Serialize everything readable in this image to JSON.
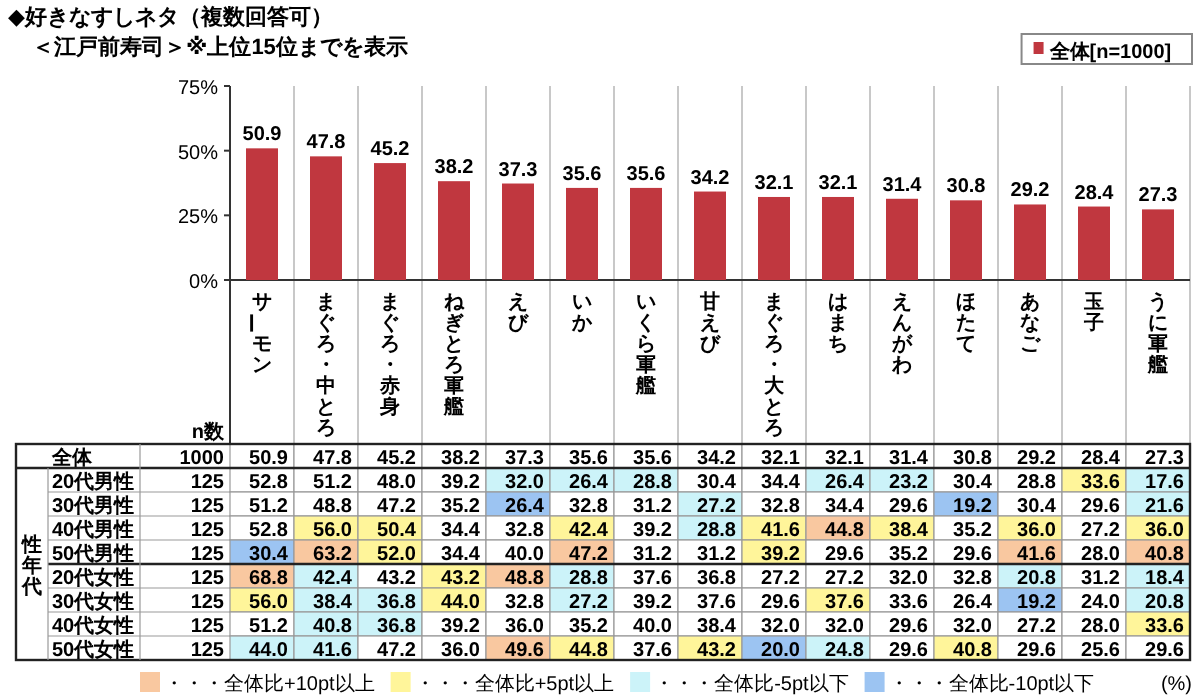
{
  "chart_data": [
    {
      "type": "bar",
      "title": "◆好きなすしネタ（複数回答可）",
      "subtitle": "＜江戸前寿司＞※上位15位までを表示",
      "categories": [
        "サーモン",
        "まぐろ・中とろ",
        "まぐろ・赤身",
        "ねぎとろ軍艦",
        "えび",
        "いか",
        "いくら軍艦",
        "甘えび",
        "まぐろ・大とろ",
        "はまち",
        "えんがわ",
        "ほたて",
        "あなご",
        "玉子",
        "うに軍艦"
      ],
      "series": [
        {
          "name": "全体[n=1000]",
          "color": "#c0373f",
          "values": [
            50.9,
            47.8,
            45.2,
            38.2,
            37.3,
            35.6,
            35.6,
            34.2,
            32.1,
            32.1,
            31.4,
            30.8,
            29.2,
            28.4,
            27.3
          ],
          "value_labels": [
            "50.9",
            "47.8",
            "45.2",
            "38.2",
            "37.3",
            "35.6",
            "35.6",
            "34.2",
            "32.1",
            "32.1",
            "31.4",
            "30.8",
            "29.2",
            "28.4",
            "27.3"
          ]
        }
      ],
      "ylim": [
        0,
        75
      ],
      "yticks": [
        {
          "value": 0,
          "label": "0%"
        },
        {
          "value": 25,
          "label": "25%"
        },
        {
          "value": 50,
          "label": "50%"
        },
        {
          "value": 75,
          "label": "75%"
        }
      ],
      "legend": "top right"
    },
    {
      "type": "heatmap",
      "ylabel": "性年代",
      "y2label": "n数",
      "tick_labels": "y",
      "categories": [
        "サーモン",
        "まぐろ・中とろ",
        "まぐろ・赤身",
        "ねぎとろ軍艦",
        "えび",
        "いか",
        "いくら軍艦",
        "甘えび",
        "まぐろ・大とろ",
        "はまち",
        "えんがわ",
        "ほたて",
        "あなご",
        "玉子",
        "うに軍艦"
      ],
      "y_categories": [
        "全体",
        "20代男性",
        "30代男性",
        "40代男性",
        "50代男性",
        "20代女性",
        "30代女性",
        "40代女性",
        "50代女性"
      ],
      "y2_categories": [
        "1000",
        "125",
        "125",
        "125",
        "125",
        "125",
        "125",
        "125",
        "125"
      ],
      "cells": [
        [
          50.9,
          47.8,
          45.2,
          38.2,
          37.3,
          35.6,
          35.6,
          34.2,
          32.1,
          32.1,
          31.4,
          30.8,
          29.2,
          28.4,
          27.3
        ],
        [
          52.8,
          51.2,
          48.0,
          39.2,
          32.0,
          26.4,
          28.8,
          30.4,
          34.4,
          26.4,
          23.2,
          30.4,
          28.8,
          33.6,
          17.6
        ],
        [
          51.2,
          48.8,
          47.2,
          35.2,
          26.4,
          32.8,
          31.2,
          27.2,
          32.8,
          34.4,
          29.6,
          19.2,
          30.4,
          29.6,
          21.6
        ],
        [
          52.8,
          56.0,
          50.4,
          34.4,
          32.8,
          42.4,
          39.2,
          28.8,
          41.6,
          44.8,
          38.4,
          35.2,
          36.0,
          27.2,
          36.0
        ],
        [
          30.4,
          63.2,
          52.0,
          34.4,
          40.0,
          47.2,
          31.2,
          31.2,
          39.2,
          29.6,
          35.2,
          29.6,
          41.6,
          28.0,
          40.8
        ],
        [
          68.8,
          42.4,
          43.2,
          43.2,
          48.8,
          28.8,
          37.6,
          36.8,
          27.2,
          27.2,
          32.0,
          32.8,
          20.8,
          31.2,
          18.4
        ],
        [
          56.0,
          38.4,
          36.8,
          44.0,
          32.8,
          27.2,
          39.2,
          37.6,
          29.6,
          37.6,
          33.6,
          26.4,
          19.2,
          24.0,
          20.8
        ],
        [
          51.2,
          40.8,
          36.8,
          39.2,
          36.0,
          35.2,
          40.0,
          38.4,
          32.0,
          32.0,
          29.6,
          32.0,
          27.2,
          28.0,
          33.6
        ],
        [
          44.0,
          41.6,
          47.2,
          36.0,
          49.6,
          44.8,
          37.6,
          43.2,
          20.0,
          24.8,
          29.6,
          40.8,
          29.6,
          25.6,
          29.6
        ]
      ],
      "cell_labels": [
        [
          "50.9",
          "47.8",
          "45.2",
          "38.2",
          "37.3",
          "35.6",
          "35.6",
          "34.2",
          "32.1",
          "32.1",
          "31.4",
          "30.8",
          "29.2",
          "28.4",
          "27.3"
        ],
        [
          "52.8",
          "51.2",
          "48.0",
          "39.2",
          "32.0",
          "26.4",
          "28.8",
          "30.4",
          "34.4",
          "26.4",
          "23.2",
          "30.4",
          "28.8",
          "33.6",
          "17.6"
        ],
        [
          "51.2",
          "48.8",
          "47.2",
          "35.2",
          "26.4",
          "32.8",
          "31.2",
          "27.2",
          "32.8",
          "34.4",
          "29.6",
          "19.2",
          "30.4",
          "29.6",
          "21.6"
        ],
        [
          "52.8",
          "56.0",
          "50.4",
          "34.4",
          "32.8",
          "42.4",
          "39.2",
          "28.8",
          "41.6",
          "44.8",
          "38.4",
          "35.2",
          "36.0",
          "27.2",
          "36.0"
        ],
        [
          "30.4",
          "63.2",
          "52.0",
          "34.4",
          "40.0",
          "47.2",
          "31.2",
          "31.2",
          "39.2",
          "29.6",
          "35.2",
          "29.6",
          "41.6",
          "28.0",
          "40.8"
        ],
        [
          "68.8",
          "42.4",
          "43.2",
          "43.2",
          "48.8",
          "28.8",
          "37.6",
          "36.8",
          "27.2",
          "27.2",
          "32.0",
          "32.8",
          "20.8",
          "31.2",
          "18.4"
        ],
        [
          "56.0",
          "38.4",
          "36.8",
          "44.0",
          "32.8",
          "27.2",
          "39.2",
          "37.6",
          "29.6",
          "37.6",
          "33.6",
          "26.4",
          "19.2",
          "24.0",
          "20.8"
        ],
        [
          "51.2",
          "40.8",
          "36.8",
          "39.2",
          "36.0",
          "35.2",
          "40.0",
          "38.4",
          "32.0",
          "32.0",
          "29.6",
          "32.0",
          "27.2",
          "28.0",
          "33.6"
        ],
        [
          "44.0",
          "41.6",
          "47.2",
          "36.0",
          "49.6",
          "44.8",
          "37.6",
          "43.2",
          "20.0",
          "24.8",
          "29.6",
          "40.8",
          "29.6",
          "25.6",
          "29.6"
        ]
      ],
      "annotations": [
        "・・・全体比+10pt以上",
        "・・・全体比+5pt以上",
        "・・・全体比-5pt以下",
        "・・・全体比-10pt以下",
        "(%)"
      ]
    }
  ]
}
